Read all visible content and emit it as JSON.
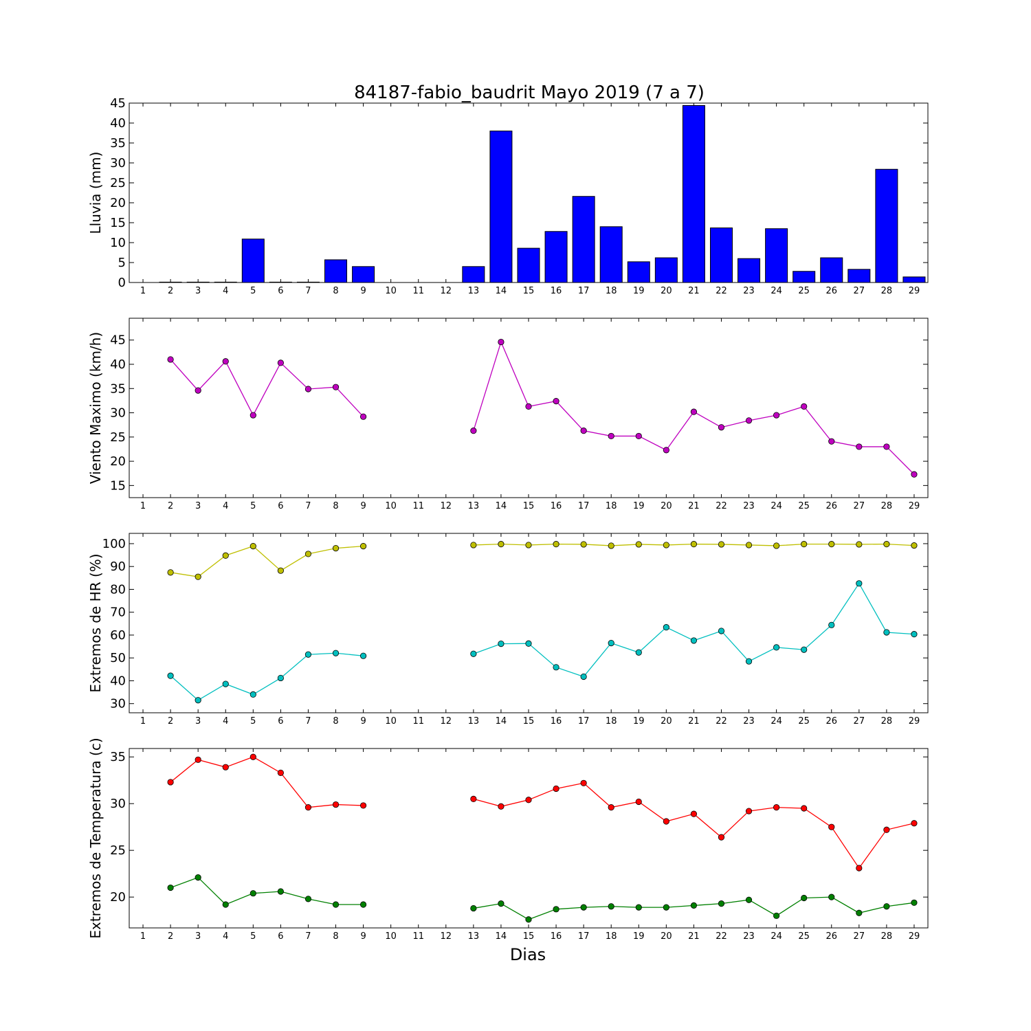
{
  "title": "84187-fabio_baudrit Mayo 2019  (7 a 7)",
  "xlabel": "Dias",
  "days": [
    1,
    2,
    3,
    4,
    5,
    6,
    7,
    8,
    9,
    10,
    11,
    12,
    13,
    14,
    15,
    16,
    17,
    18,
    19,
    20,
    21,
    22,
    23,
    24,
    25,
    26,
    27,
    28,
    29
  ],
  "colors": {
    "rain": "#0000ff",
    "wind": "#bf00bf",
    "hr_max": "#bfbf00",
    "hr_min": "#00bfbf",
    "temp_max": "#ff0000",
    "temp_min": "#008000"
  },
  "chart_data": [
    {
      "type": "bar",
      "ylabel": "Lluvia (mm)",
      "ylim": [
        0,
        45
      ],
      "yticks": [
        0,
        5,
        10,
        15,
        20,
        25,
        30,
        35,
        40,
        45
      ],
      "x": [
        1,
        2,
        3,
        4,
        5,
        6,
        7,
        8,
        9,
        10,
        11,
        12,
        13,
        14,
        15,
        16,
        17,
        18,
        19,
        20,
        21,
        22,
        23,
        24,
        25,
        26,
        27,
        28,
        29
      ],
      "values": [
        0,
        0.1,
        0.1,
        0.1,
        10.9,
        0.1,
        0.1,
        5.7,
        4.0,
        0,
        0,
        0,
        4.0,
        38.0,
        8.6,
        12.8,
        21.6,
        14.0,
        5.2,
        6.2,
        44.4,
        13.7,
        6.0,
        13.5,
        2.8,
        6.2,
        3.3,
        28.4,
        1.4
      ]
    },
    {
      "type": "line",
      "ylabel": "Viento Maximo (km/h)",
      "ylim": [
        12.5,
        49.5
      ],
      "yticks": [
        15,
        20,
        25,
        30,
        35,
        40,
        45
      ],
      "x": [
        1,
        2,
        3,
        4,
        5,
        6,
        7,
        8,
        9,
        10,
        11,
        12,
        13,
        14,
        15,
        16,
        17,
        18,
        19,
        20,
        21,
        22,
        23,
        24,
        25,
        26,
        27,
        28,
        29
      ],
      "series": [
        {
          "color_key": "wind",
          "values": [
            null,
            41.0,
            34.6,
            40.6,
            29.5,
            40.3,
            34.9,
            35.3,
            29.2,
            null,
            null,
            null,
            26.3,
            44.6,
            31.3,
            32.4,
            26.3,
            25.2,
            25.2,
            22.3,
            30.2,
            27.0,
            28.4,
            29.5,
            31.3,
            24.1,
            23.0,
            23.0,
            17.3
          ]
        }
      ]
    },
    {
      "type": "line",
      "ylabel": "Extremos de HR (%)",
      "ylim": [
        26,
        104.5
      ],
      "yticks": [
        30,
        40,
        50,
        60,
        70,
        80,
        90,
        100
      ],
      "x": [
        1,
        2,
        3,
        4,
        5,
        6,
        7,
        8,
        9,
        10,
        11,
        12,
        13,
        14,
        15,
        16,
        17,
        18,
        19,
        20,
        21,
        22,
        23,
        24,
        25,
        26,
        27,
        28,
        29
      ],
      "series": [
        {
          "color_key": "hr_max",
          "values": [
            null,
            87.4,
            85.5,
            94.8,
            98.9,
            88.2,
            95.5,
            98.0,
            98.9,
            null,
            null,
            null,
            99.4,
            99.8,
            99.4,
            99.8,
            99.7,
            99.1,
            99.7,
            99.4,
            99.8,
            99.7,
            99.4,
            99.1,
            99.8,
            99.8,
            99.7,
            99.8,
            99.2
          ]
        },
        {
          "color_key": "hr_min",
          "values": [
            null,
            42.2,
            31.5,
            38.6,
            34.0,
            41.2,
            51.5,
            52.1,
            50.9,
            null,
            null,
            null,
            51.8,
            56.2,
            56.3,
            45.9,
            41.8,
            56.5,
            52.4,
            63.4,
            57.6,
            61.8,
            48.5,
            54.6,
            53.6,
            64.4,
            82.6,
            61.2,
            60.4
          ]
        }
      ]
    },
    {
      "type": "line",
      "ylabel": "Extremos de Temperatura (c)",
      "ylim": [
        16.7,
        35.9
      ],
      "yticks": [
        20,
        25,
        30,
        35
      ],
      "x": [
        1,
        2,
        3,
        4,
        5,
        6,
        7,
        8,
        9,
        10,
        11,
        12,
        13,
        14,
        15,
        16,
        17,
        18,
        19,
        20,
        21,
        22,
        23,
        24,
        25,
        26,
        27,
        28,
        29
      ],
      "series": [
        {
          "color_key": "temp_max",
          "values": [
            null,
            32.3,
            34.7,
            33.9,
            35.0,
            33.3,
            29.6,
            29.9,
            29.8,
            null,
            null,
            null,
            30.5,
            29.7,
            30.4,
            31.6,
            32.2,
            29.6,
            30.2,
            28.1,
            28.9,
            26.4,
            29.2,
            29.6,
            29.5,
            27.5,
            23.1,
            27.2,
            27.9
          ]
        },
        {
          "color_key": "temp_min",
          "values": [
            null,
            21.0,
            22.1,
            19.2,
            20.4,
            20.6,
            19.8,
            19.2,
            19.2,
            null,
            null,
            null,
            18.8,
            19.3,
            17.6,
            18.7,
            18.9,
            19.0,
            18.9,
            18.9,
            19.1,
            19.3,
            19.7,
            18.0,
            19.9,
            20.0,
            18.3,
            19.0,
            19.4
          ]
        }
      ]
    }
  ]
}
